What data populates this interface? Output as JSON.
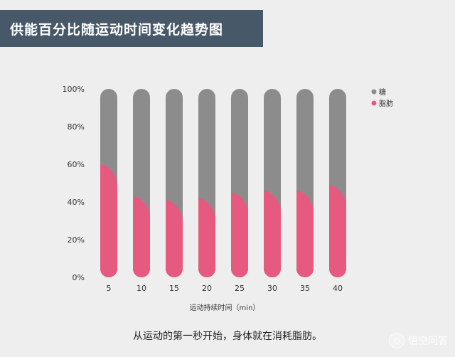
{
  "header": {
    "title": "供能百分比随运动时间变化趋势图"
  },
  "caption": "从运动的第一秒开始，身体就在消耗脂肪。",
  "watermark": {
    "text": "悟空问答",
    "icon": "chat-bubble-icon"
  },
  "colors": {
    "sugar": "#8c8c8c",
    "fat": "#e65a80",
    "background": "#eeeeee",
    "banner": "#475868"
  },
  "chart_data": {
    "type": "bar",
    "stacked": true,
    "categories": [
      "5",
      "10",
      "15",
      "20",
      "25",
      "30",
      "35",
      "40"
    ],
    "series": [
      {
        "name": "糖",
        "values": [
          40,
          57,
          59,
          58,
          55,
          54,
          54,
          51
        ]
      },
      {
        "name": "脂肪",
        "values": [
          60,
          43,
          41,
          42,
          45,
          46,
          46,
          49
        ]
      }
    ],
    "xlabel": "运动持续时间（min）",
    "ylabel": "",
    "ylim": [
      0,
      100
    ],
    "yticks": [
      "0%",
      "20%",
      "40%",
      "60%",
      "80%",
      "100%"
    ],
    "legend_position": "top-right",
    "grid": false
  }
}
